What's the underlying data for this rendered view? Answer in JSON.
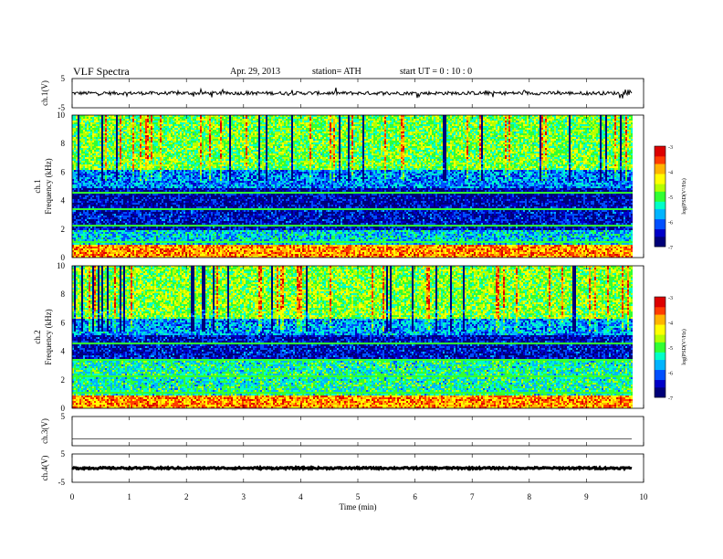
{
  "header": {
    "title": "VLF Spectra",
    "date": "Apr. 29, 2013",
    "station": "station= ATH",
    "start": "start  UT =   0 : 10 : 0"
  },
  "colors": {
    "colormap": [
      "#000078",
      "#0000c8",
      "#0050ff",
      "#00b4ff",
      "#00ffc8",
      "#32ff32",
      "#b4ff00",
      "#ffff00",
      "#ffb400",
      "#ff3c00",
      "#dc0000",
      "#ffffff"
    ],
    "trace": "#000000"
  },
  "chart_data": [
    {
      "type": "line",
      "id": "ch1",
      "ylabel": "ch.1(V)",
      "yticks": [
        "5",
        "-5"
      ],
      "ylim": [
        -5,
        5
      ],
      "x_range": [
        0,
        9.8
      ],
      "description_values": {
        "baseline_v": 0.0,
        "noise_amplitude_v": 0.6,
        "spike_amplitude_v": 1.5
      }
    },
    {
      "type": "heatmap",
      "id": "ch1_spec",
      "ylabel_top": "ch.1",
      "ylabel": "Frequency (kHz)",
      "yticks": [
        "10",
        "8",
        "6",
        "4",
        "2",
        "0"
      ],
      "ylim": [
        0,
        10
      ],
      "x_range": [
        0,
        9.8
      ],
      "colorbar": {
        "label": "log(PSD(V²/Hz)",
        "ticks": [
          "-3",
          "-4",
          "-5",
          "-6",
          "-7"
        ],
        "range": [
          -7,
          -3
        ]
      },
      "bands_khz": [
        {
          "from": 0.0,
          "to": 0.9,
          "log_psd": -3.8
        },
        {
          "from": 0.9,
          "to": 2.0,
          "log_psd": -5.6
        },
        {
          "from": 2.0,
          "to": 3.6,
          "log_psd": -6.5
        },
        {
          "from": 3.6,
          "to": 5.0,
          "log_psd": -6.6
        },
        {
          "from": 5.0,
          "to": 6.2,
          "log_psd": -5.9
        },
        {
          "from": 6.2,
          "to": 10.0,
          "log_psd": -4.9
        }
      ]
    },
    {
      "type": "heatmap",
      "id": "ch2_spec",
      "ylabel_top": "ch.2",
      "ylabel": "Frequency (kHz)",
      "yticks": [
        "10",
        "8",
        "6",
        "4",
        "2",
        "0"
      ],
      "ylim": [
        0,
        10
      ],
      "x_range": [
        0,
        9.8
      ],
      "colorbar": {
        "label": "log(PSD(V²/Hz)",
        "ticks": [
          "-3",
          "-4",
          "-5",
          "-6",
          "-7"
        ],
        "range": [
          -7,
          -3
        ]
      },
      "bands_khz": [
        {
          "from": 0.0,
          "to": 0.9,
          "log_psd": -3.8
        },
        {
          "from": 0.9,
          "to": 3.4,
          "log_psd": -5.3
        },
        {
          "from": 3.4,
          "to": 5.2,
          "log_psd": -6.5
        },
        {
          "from": 5.2,
          "to": 6.3,
          "log_psd": -5.8
        },
        {
          "from": 6.3,
          "to": 10.0,
          "log_psd": -4.8
        }
      ]
    },
    {
      "type": "line",
      "id": "ch3",
      "ylabel": "ch.3(V)",
      "yticks": [
        "5"
      ],
      "ylim": [
        -5,
        5
      ],
      "x_range": [
        0,
        9.8
      ],
      "description_values": {
        "baseline_v": -2.7,
        "noise_amplitude_v": 0.0,
        "spike_amplitude_v": 0.0
      }
    },
    {
      "type": "line",
      "id": "ch4",
      "ylabel": "ch.4(V)",
      "yticks": [
        "5",
        "-5"
      ],
      "ylim": [
        -5,
        5
      ],
      "x_range": [
        0,
        9.8
      ],
      "description_values": {
        "baseline_v": 0.0,
        "noise_amplitude_v": 0.3,
        "spike_amplitude_v": 0.0
      }
    }
  ],
  "x_axis": {
    "label": "Time (min)",
    "ticks": [
      "0",
      "1",
      "2",
      "3",
      "4",
      "5",
      "6",
      "7",
      "8",
      "9",
      "10"
    ],
    "xlim": [
      0,
      10
    ]
  }
}
